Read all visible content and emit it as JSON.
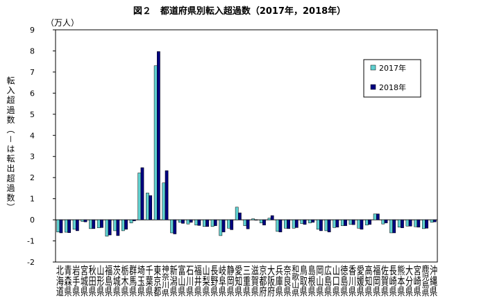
{
  "chart_data": {
    "type": "bar",
    "title": "図２　都道府県別転入超過数（2017年，2018年）",
    "y_unit": "（万人）",
    "y_label": "転入超過数（－は転出超過数）",
    "categories": [
      "北海道",
      "青森県",
      "岩手県",
      "宮城県",
      "秋田県",
      "山形県",
      "福島県",
      "茨城県",
      "栃木県",
      "群馬県",
      "埼玉県",
      "千葉県",
      "東京都",
      "神奈川県",
      "新潟県",
      "富山県",
      "石川県",
      "福井県",
      "山梨県",
      "長野県",
      "岐阜県",
      "静岡県",
      "愛知県",
      "三重県",
      "滋賀県",
      "京都府",
      "大阪府",
      "兵庫県",
      "奈良県",
      "和歌山県",
      "鳥取県",
      "島根県",
      "岡山県",
      "広島県",
      "山口県",
      "徳島県",
      "香川県",
      "愛媛県",
      "高知県",
      "福岡県",
      "佐賀県",
      "長崎県",
      "熊本県",
      "大分県",
      "宮崎県",
      "鹿児島県",
      "沖縄県"
    ],
    "series": [
      {
        "name": "2017年",
        "color": "#5fd0d0",
        "values": [
          -0.58,
          -0.59,
          -0.45,
          -0.08,
          -0.42,
          -0.38,
          -0.78,
          -0.52,
          -0.52,
          -0.15,
          2.22,
          1.27,
          7.3,
          1.75,
          -0.62,
          -0.12,
          -0.2,
          -0.25,
          -0.32,
          -0.32,
          -0.75,
          -0.4,
          0.6,
          -0.28,
          0.05,
          -0.15,
          0.08,
          -0.55,
          -0.4,
          -0.4,
          -0.18,
          -0.15,
          -0.45,
          -0.52,
          -0.37,
          -0.28,
          -0.22,
          -0.4,
          -0.25,
          0.28,
          -0.2,
          -0.62,
          -0.35,
          -0.3,
          -0.33,
          -0.42,
          -0.12
        ]
      },
      {
        "name": "2018年",
        "color": "#000080",
        "values": [
          -0.62,
          -0.61,
          -0.52,
          -0.1,
          -0.42,
          -0.37,
          -0.72,
          -0.75,
          -0.45,
          -0.05,
          2.47,
          1.15,
          7.97,
          2.33,
          -0.67,
          -0.17,
          -0.12,
          -0.27,
          -0.32,
          -0.28,
          -0.58,
          -0.47,
          0.33,
          -0.43,
          -0.02,
          -0.25,
          0.2,
          -0.58,
          -0.42,
          -0.37,
          -0.22,
          -0.12,
          -0.52,
          -0.58,
          -0.35,
          -0.28,
          -0.23,
          -0.45,
          -0.22,
          0.28,
          -0.15,
          -0.62,
          -0.38,
          -0.3,
          -0.35,
          -0.4,
          -0.1
        ]
      }
    ],
    "ylim": [
      -2,
      9
    ],
    "yticks": [
      -2,
      -1,
      0,
      1,
      2,
      3,
      4,
      5,
      6,
      7,
      8,
      9
    ],
    "grid": false
  }
}
